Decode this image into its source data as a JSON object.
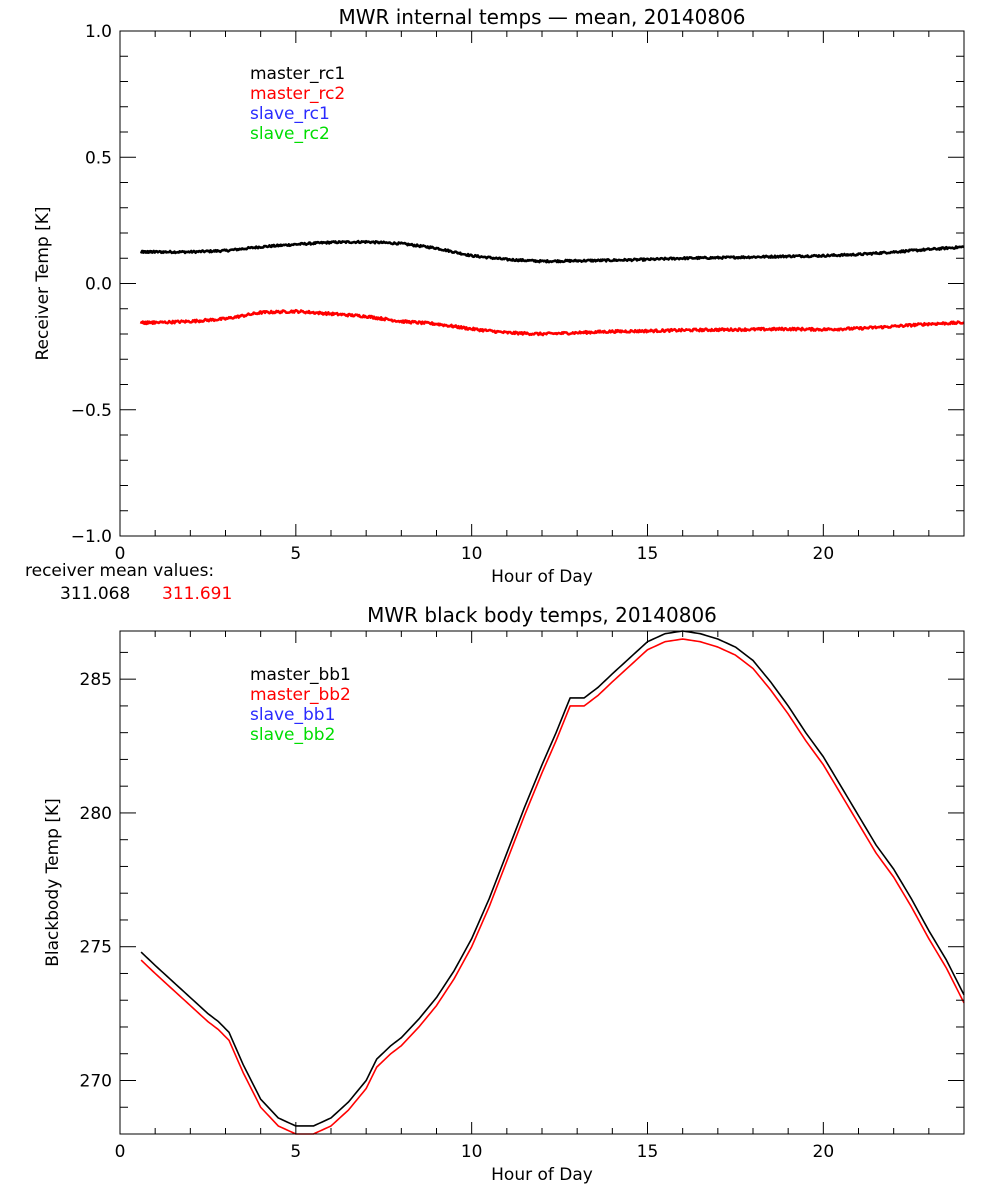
{
  "colors": {
    "black": "#000000",
    "red": "#ff0000",
    "blue": "#2a2aff",
    "green": "#00dd00"
  },
  "mean_values": {
    "label": "receiver mean values:",
    "values": [
      "311.068",
      "311.691"
    ]
  },
  "chart_data": [
    {
      "type": "line",
      "title": "MWR internal temps — mean, 20140806",
      "xlabel": "Hour of Day",
      "ylabel": "Receiver Temp [K]",
      "xlim": [
        0,
        24
      ],
      "ylim": [
        -1.0,
        1.0
      ],
      "xticks": [
        0,
        5,
        10,
        15,
        20
      ],
      "xtick_labels": [
        "0",
        "5",
        "10",
        "15",
        "20"
      ],
      "yticks": [
        -1.0,
        -0.5,
        0.0,
        0.5,
        1.0
      ],
      "ytick_labels": [
        "−1.0",
        "−0.5",
        "0.0",
        "0.5",
        "1.0"
      ],
      "x_minor_step": 1,
      "y_minor_step": 0.1,
      "legend_position": "top-left",
      "legend": [
        {
          "name": "master_rc1",
          "color": "#000000"
        },
        {
          "name": "master_rc2",
          "color": "#ff0000"
        },
        {
          "name": "slave_rc1",
          "color": "#2a2aff"
        },
        {
          "name": "slave_rc2",
          "color": "#00dd00"
        }
      ],
      "series": [
        {
          "name": "master_rc1",
          "color": "#000000",
          "noise": 0.004,
          "x": [
            0.6,
            1,
            2,
            3,
            4,
            5,
            6,
            7,
            8,
            9,
            10,
            11,
            12,
            13,
            14,
            15,
            16,
            17,
            18,
            19,
            20,
            21,
            22,
            23,
            24
          ],
          "y": [
            0.125,
            0.125,
            0.125,
            0.13,
            0.145,
            0.155,
            0.163,
            0.165,
            0.158,
            0.14,
            0.11,
            0.095,
            0.088,
            0.09,
            0.092,
            0.095,
            0.1,
            0.102,
            0.105,
            0.108,
            0.11,
            0.115,
            0.125,
            0.135,
            0.145
          ]
        },
        {
          "name": "master_rc2",
          "color": "#ff0000",
          "noise": 0.005,
          "x": [
            0.6,
            1,
            2,
            3,
            4,
            5,
            6,
            7,
            8,
            9,
            10,
            11,
            12,
            13,
            14,
            15,
            16,
            17,
            18,
            19,
            20,
            21,
            22,
            23,
            24
          ],
          "y": [
            -0.155,
            -0.155,
            -0.15,
            -0.14,
            -0.115,
            -0.11,
            -0.12,
            -0.13,
            -0.15,
            -0.16,
            -0.18,
            -0.195,
            -0.2,
            -0.195,
            -0.19,
            -0.188,
            -0.185,
            -0.183,
            -0.182,
            -0.18,
            -0.182,
            -0.178,
            -0.17,
            -0.16,
            -0.155
          ]
        }
      ]
    },
    {
      "type": "line",
      "title": "MWR black body temps, 20140806",
      "xlabel": "Hour of Day",
      "ylabel": "Blackbody Temp [K]",
      "xlim": [
        0,
        24
      ],
      "ylim": [
        268.0,
        286.8
      ],
      "xticks": [
        0,
        5,
        10,
        15,
        20
      ],
      "xtick_labels": [
        "0",
        "5",
        "10",
        "15",
        "20"
      ],
      "yticks": [
        270,
        275,
        280,
        285
      ],
      "ytick_labels": [
        "270",
        "275",
        "280",
        "285"
      ],
      "x_minor_step": 1,
      "y_minor_step": 1,
      "legend_position": "top-left",
      "legend": [
        {
          "name": "master_bb1",
          "color": "#000000"
        },
        {
          "name": "master_bb2",
          "color": "#ff0000"
        },
        {
          "name": "slave_bb1",
          "color": "#2a2aff"
        },
        {
          "name": "slave_bb2",
          "color": "#00dd00"
        }
      ],
      "series": [
        {
          "name": "master_bb1",
          "color": "#000000",
          "noise": 0,
          "x": [
            0.6,
            1.0,
            1.5,
            2.0,
            2.5,
            2.8,
            3.1,
            3.5,
            4.0,
            4.5,
            5.0,
            5.5,
            6.0,
            6.5,
            7.0,
            7.3,
            7.7,
            8.0,
            8.5,
            9.0,
            9.5,
            10.0,
            10.5,
            11.0,
            11.5,
            12.0,
            12.4,
            12.8,
            13.2,
            13.6,
            14.0,
            14.5,
            15.0,
            15.5,
            16.0,
            16.5,
            17.0,
            17.5,
            18.0,
            18.5,
            19.0,
            19.5,
            20.0,
            20.5,
            21.0,
            21.5,
            22.0,
            22.5,
            23.0,
            23.5,
            24.0
          ],
          "y": [
            274.8,
            274.3,
            273.7,
            273.1,
            272.5,
            272.2,
            271.8,
            270.6,
            269.3,
            268.6,
            268.3,
            268.3,
            268.6,
            269.2,
            270.0,
            270.8,
            271.3,
            271.6,
            272.3,
            273.1,
            274.1,
            275.3,
            276.8,
            278.5,
            280.2,
            281.8,
            283.0,
            284.3,
            284.3,
            284.7,
            285.2,
            285.8,
            286.4,
            286.7,
            286.8,
            286.7,
            286.5,
            286.2,
            285.7,
            284.9,
            284.0,
            283.0,
            282.1,
            281.0,
            279.9,
            278.8,
            277.9,
            276.8,
            275.6,
            274.5,
            273.2
          ]
        },
        {
          "name": "master_bb2",
          "color": "#ff0000",
          "noise": 0,
          "x": [
            0.6,
            1.0,
            1.5,
            2.0,
            2.5,
            2.8,
            3.1,
            3.5,
            4.0,
            4.5,
            5.0,
            5.5,
            6.0,
            6.5,
            7.0,
            7.3,
            7.7,
            8.0,
            8.5,
            9.0,
            9.5,
            10.0,
            10.5,
            11.0,
            11.5,
            12.0,
            12.4,
            12.8,
            13.2,
            13.6,
            14.0,
            14.5,
            15.0,
            15.5,
            16.0,
            16.5,
            17.0,
            17.5,
            18.0,
            18.5,
            19.0,
            19.5,
            20.0,
            20.5,
            21.0,
            21.5,
            22.0,
            22.5,
            23.0,
            23.5,
            24.0
          ],
          "y": [
            274.5,
            274.0,
            273.4,
            272.8,
            272.2,
            271.9,
            271.5,
            270.3,
            269.0,
            268.3,
            268.0,
            268.0,
            268.3,
            268.9,
            269.7,
            270.5,
            271.0,
            271.3,
            272.0,
            272.8,
            273.8,
            275.0,
            276.5,
            278.2,
            279.9,
            281.5,
            282.7,
            284.0,
            284.0,
            284.4,
            284.9,
            285.5,
            286.1,
            286.4,
            286.5,
            286.4,
            286.2,
            285.9,
            285.4,
            284.6,
            283.7,
            282.7,
            281.8,
            280.7,
            279.6,
            278.5,
            277.6,
            276.5,
            275.3,
            274.2,
            272.9
          ]
        }
      ]
    }
  ]
}
